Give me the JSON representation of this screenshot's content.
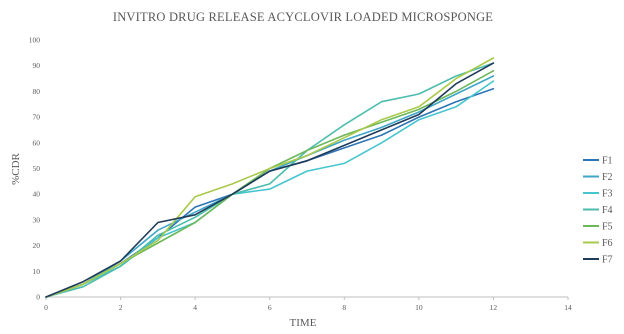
{
  "chart_data": {
    "type": "line",
    "title": "INVITRO DRUG RELEASE ACYCLOVIR LOADED MICROSPONGE",
    "xlabel": "TIME",
    "ylabel": "%CDR",
    "xlim": [
      0,
      14
    ],
    "ylim": [
      0,
      100
    ],
    "x_ticks": [
      "0",
      "2",
      "4",
      "6",
      "8",
      "10",
      "12",
      "14"
    ],
    "y_ticks": [
      "0",
      "10",
      "20",
      "30",
      "40",
      "50",
      "60",
      "70",
      "80",
      "90",
      "100"
    ],
    "grid": false,
    "legend_position": "right",
    "x": [
      0,
      1,
      2,
      3,
      4,
      5,
      6,
      7,
      8,
      9,
      10,
      11,
      12
    ],
    "series": [
      {
        "name": "F1",
        "color": "#2e75b6",
        "values": [
          0,
          5,
          13,
          23,
          35,
          40,
          49,
          53,
          58,
          63,
          70,
          76,
          81
        ]
      },
      {
        "name": "F2",
        "color": "#3fa6c8",
        "values": [
          0,
          5,
          14,
          26,
          33,
          40,
          49,
          55,
          61,
          66,
          72,
          79,
          86
        ]
      },
      {
        "name": "F3",
        "color": "#47c5cf",
        "values": [
          0,
          5,
          12,
          23,
          29,
          40,
          42,
          49,
          52,
          60,
          69,
          74,
          84
        ]
      },
      {
        "name": "F4",
        "color": "#4cbdad",
        "values": [
          0,
          4,
          12,
          24,
          31,
          40,
          44,
          57,
          67,
          76,
          79,
          86,
          91
        ]
      },
      {
        "name": "F5",
        "color": "#6db75b",
        "values": [
          0,
          5,
          13,
          21,
          29,
          40,
          50,
          57,
          63,
          68,
          73,
          80,
          88
        ]
      },
      {
        "name": "F6",
        "color": "#a9c94a",
        "values": [
          0,
          5,
          13,
          22,
          39,
          44,
          50,
          55,
          62,
          69,
          74,
          85,
          93
        ]
      },
      {
        "name": "F7",
        "color": "#1f3b5a",
        "values": [
          0,
          6,
          14,
          29,
          32,
          40,
          49,
          53,
          59,
          65,
          71,
          83,
          91
        ]
      }
    ]
  }
}
